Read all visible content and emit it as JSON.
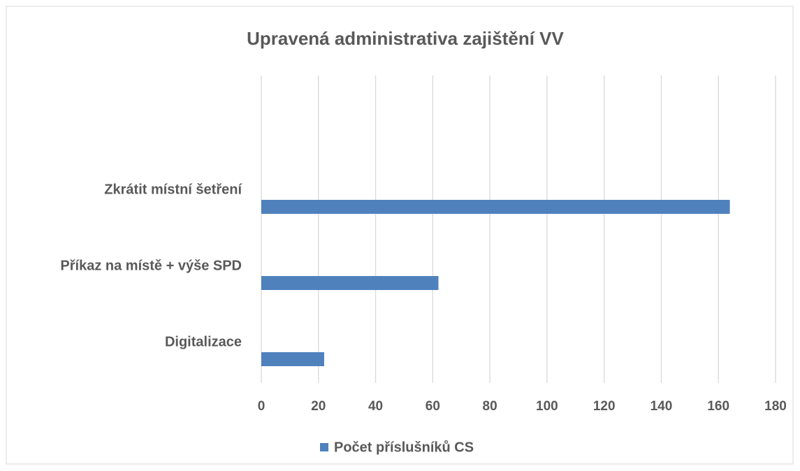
{
  "chart_data": {
    "type": "bar",
    "orientation": "horizontal",
    "title": "Upravená administrativa  zajištění VV",
    "categories": [
      "Zkrátit místní šetření",
      "Příkaz na místě + výše SPD",
      "Digitalizace"
    ],
    "series": [
      {
        "name": "Počet příslušníků CS",
        "color": "#4f81bd",
        "values": [
          164,
          62,
          22
        ]
      }
    ],
    "xlim": [
      0,
      180
    ],
    "xticks": [
      0,
      20,
      40,
      60,
      80,
      100,
      120,
      140,
      160,
      180
    ],
    "grid": true,
    "legend": "bottom"
  }
}
